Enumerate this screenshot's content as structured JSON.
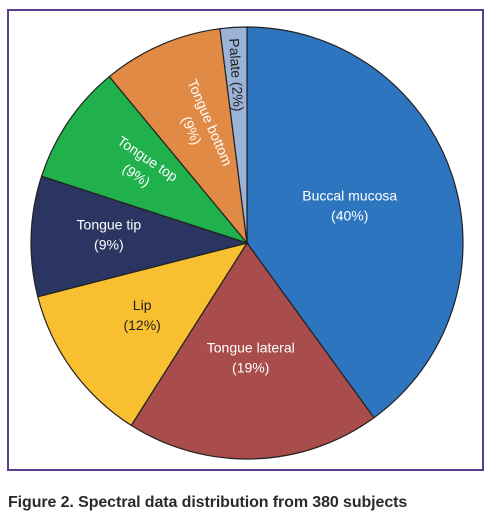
{
  "chart_data": {
    "type": "pie",
    "title": "",
    "slices": [
      {
        "name": "Buccal mucosa",
        "value": 40,
        "label": "(40%)",
        "color": "#2e75bf",
        "text_color": "#ffffff"
      },
      {
        "name": "Tongue lateral",
        "value": 19,
        "label": "(19%)",
        "color": "#a94c4c",
        "text_color": "#ffffff"
      },
      {
        "name": "Lip",
        "value": 12,
        "label": "(12%)",
        "color": "#f8c030",
        "text_color": "#222222"
      },
      {
        "name": "Tongue tip",
        "value": 9,
        "label": "(9%)",
        "color": "#2b3561",
        "text_color": "#ffffff"
      },
      {
        "name": "Tongue top",
        "value": 9,
        "label": "(9%)",
        "color": "#20b04c",
        "text_color": "#ffffff"
      },
      {
        "name": "Tongue bottom",
        "value": 9,
        "label": "(9%)",
        "color": "#e08a46",
        "text_color": "#ffffff"
      },
      {
        "name": "Palate",
        "value": 2,
        "label": "(2%)",
        "color": "#9bb3d6",
        "text_color": "#222222"
      }
    ]
  },
  "caption": "Figure 2. Spectral data distribution from 380 subjects"
}
